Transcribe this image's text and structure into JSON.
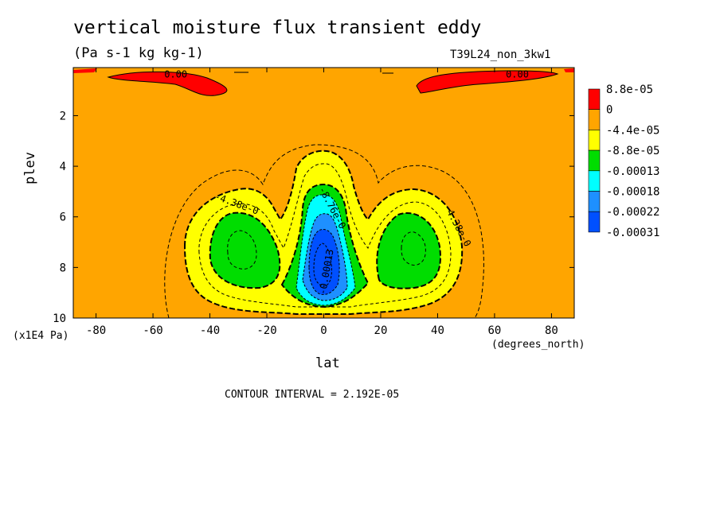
{
  "chart_data": {
    "type": "contour",
    "title": "vertical moisture flux transient eddy",
    "units": "(Pa s-1 kg kg-1)",
    "run_label": "T39L24_non_3kw1",
    "xlabel": "lat",
    "xunit": "(degrees_north)",
    "ylabel": "plev",
    "yunit": "(x1E4 Pa)",
    "footer": "CONTOUR INTERVAL = 2.192E-05",
    "xlim": [
      -88,
      88
    ],
    "ylim": [
      10,
      0.1
    ],
    "xticks": [
      -80,
      -60,
      -40,
      -20,
      0,
      20,
      40,
      60,
      80
    ],
    "yticks": [
      2,
      4,
      6,
      8,
      10
    ],
    "colorbar": {
      "colors": [
        "#ff0000",
        "#ffa500",
        "#ffff00",
        "#00dd00",
        "#00ffff",
        "#1e90ff",
        "#0050ff"
      ],
      "labels": [
        "8.8e-05",
        "0",
        "-4.4e-05",
        "-8.8e-05",
        "-0.00013",
        "-0.00018",
        "-0.00022",
        "-0.00031"
      ]
    },
    "contour_labels": [
      {
        "text": "0.00",
        "lat": -52,
        "plev": 0.5,
        "angle": 0
      },
      {
        "text": "0.00",
        "lat": 68,
        "plev": 0.5,
        "angle": 0
      },
      {
        "text": "-4.38e-0",
        "lat": -31,
        "plev": 5.6,
        "angle": 20
      },
      {
        "text": "-4.38e-0",
        "lat": 46,
        "plev": 6.4,
        "angle": 62
      },
      {
        "text": "-8.76e-0",
        "lat": 2,
        "plev": 5.7,
        "angle": 62
      },
      {
        "text": "-0.00013",
        "lat": 2,
        "plev": 8.2,
        "angle": -80
      }
    ]
  }
}
